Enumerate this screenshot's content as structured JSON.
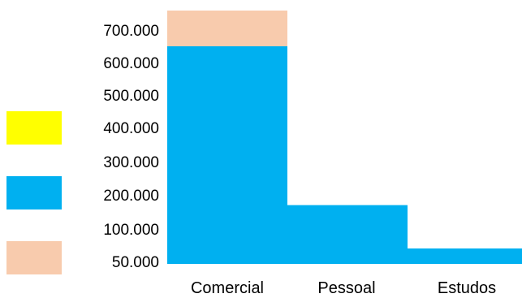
{
  "chart_data": {
    "type": "bar",
    "stacked": true,
    "title": "",
    "xlabel": "",
    "ylabel": "",
    "categories": [
      "Comercial",
      "Pessoal",
      "Estudos"
    ],
    "y_ticks": [
      {
        "label": "50.000",
        "value": 50000
      },
      {
        "label": "100.000",
        "value": 100000
      },
      {
        "label": "200.000",
        "value": 200000
      },
      {
        "label": "300.000",
        "value": 300000
      },
      {
        "label": "400.000",
        "value": 400000
      },
      {
        "label": "500.000",
        "value": 500000
      },
      {
        "label": "600.000",
        "value": 600000
      },
      {
        "label": "700.000",
        "value": 700000
      }
    ],
    "ylim": [
      0,
      750000
    ],
    "grid": false,
    "series": [
      {
        "color": "#00b0f0",
        "values": [
          650000,
          170000,
          70000
        ]
      },
      {
        "color": "#f8cbad",
        "values": [
          110000,
          0,
          0
        ]
      },
      {
        "color": "#ffff00",
        "values": [
          0,
          0,
          0
        ]
      }
    ],
    "legend": {
      "position": "left",
      "swatches": [
        "#ffff00",
        "#00b0f0",
        "#f8cbad"
      ]
    }
  }
}
